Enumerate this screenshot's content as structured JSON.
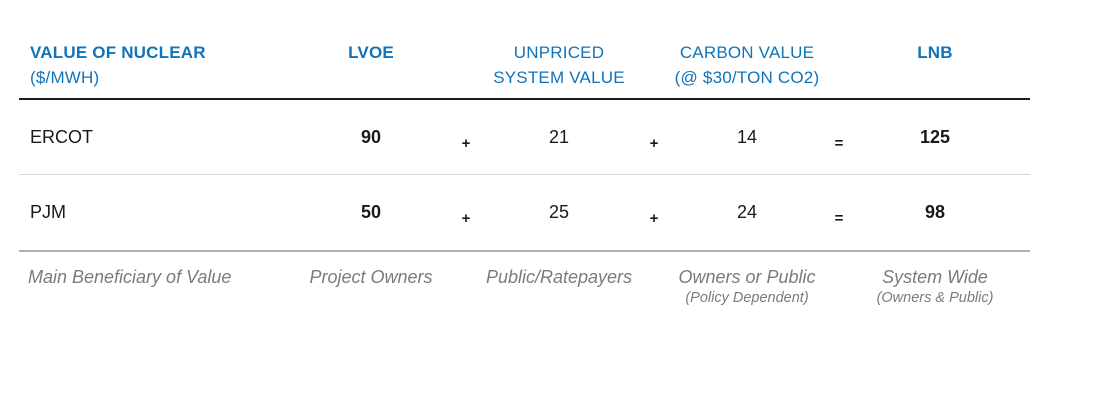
{
  "chart_data": {
    "type": "table",
    "title": "VALUE OF NUCLEAR ($/MWH)",
    "columns": [
      "VALUE OF NUCLEAR ($/MWH)",
      "LVOE",
      "UNPRICED SYSTEM VALUE",
      "CARBON VALUE (@ $30/TON CO2)",
      "LNB"
    ],
    "relation": "LVOE + UNPRICED SYSTEM VALUE + CARBON VALUE = LNB",
    "rows": [
      {
        "region": "ERCOT",
        "lvoe": 90,
        "unpriced_system_value": 21,
        "carbon_value": 14,
        "lnb": 125
      },
      {
        "region": "PJM",
        "lvoe": 50,
        "unpriced_system_value": 25,
        "carbon_value": 24,
        "lnb": 98
      }
    ],
    "beneficiaries": {
      "label": "Main Beneficiary of Value",
      "lvoe": "Project Owners",
      "unpriced_system_value": "Public/Ratepayers",
      "carbon_value": "Owners or Public (Policy Dependent)",
      "lnb": "System Wide (Owners & Public)"
    }
  },
  "table": {
    "header": {
      "col0_line1": "VALUE OF NUCLEAR",
      "col0_line2": "($/MWH)",
      "lvoe": "LVOE",
      "unpriced_line1": "UNPRICED",
      "unpriced_line2": "SYSTEM VALUE",
      "carbon_line1": "CARBON VALUE",
      "carbon_line2": "(@ $30/TON CO2)",
      "lnb": "LNB"
    },
    "rows": [
      {
        "label": "ERCOT",
        "lvoe": "90",
        "op1": "+",
        "unpriced": "21",
        "op2": "+",
        "carbon": "14",
        "op3": "=",
        "lnb": "125"
      },
      {
        "label": "PJM",
        "lvoe": "50",
        "op1": "+",
        "unpriced": "25",
        "op2": "+",
        "carbon": "24",
        "op3": "=",
        "lnb": "98"
      }
    ],
    "footer": {
      "label": "Main Beneficiary of Value",
      "lvoe": "Project Owners",
      "unpriced": "Public/Ratepayers",
      "carbon_line1": "Owners or Public",
      "carbon_line2": "(Policy Dependent)",
      "lnb_line1": "System Wide",
      "lnb_line2": "(Owners & Public)"
    },
    "colors": {
      "header_blue": "#1173b8",
      "body_text": "#1a1a1a",
      "footer_gray": "#7b7b7b"
    }
  }
}
